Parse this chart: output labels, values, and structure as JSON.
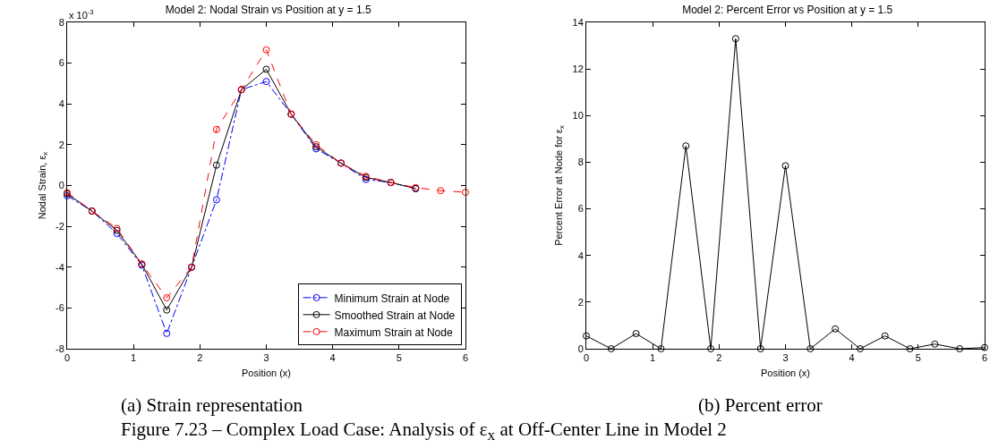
{
  "chart_data": [
    {
      "type": "line",
      "title": "Model 2: Nodal Strain vs Position at y = 1.5",
      "xlabel": "Position (x)",
      "ylabel": "Nodal Strain, ε$_{x}$",
      "annotations": [
        "x 10$^{-3}$",
        "(a) Strain representation",
        "Figure 7.23 – Complex Load Case: Analysis of ε$_{x}$ at Off-Center Line in Model 2"
      ],
      "x": [
        0,
        0.375,
        0.75,
        1.125,
        1.5,
        1.875,
        2.25,
        2.625,
        3,
        3.375,
        3.75,
        4.125,
        4.5,
        4.875,
        5.25,
        5.625,
        6
      ],
      "series": [
        {
          "name": "Minimum Strain at Node",
          "color": "#0000ff",
          "line_style": "dashdot",
          "values": [
            -0.5,
            -1.25,
            -2.35,
            -3.9,
            -7.25,
            -4.0,
            -0.7,
            4.7,
            5.1,
            3.5,
            1.8,
            1.1,
            0.3,
            0.15,
            -0.15,
            null,
            null
          ]
        },
        {
          "name": "Smoothed Strain at Node",
          "color": "#000000",
          "line_style": "solid",
          "values": [
            -0.4,
            -1.25,
            -2.2,
            -3.85,
            -6.1,
            -4.0,
            1.0,
            4.7,
            5.7,
            3.5,
            1.9,
            1.1,
            0.4,
            0.15,
            -0.15,
            null,
            null
          ]
        },
        {
          "name": "Maximum Strain at Node",
          "color": "#ff0000",
          "line_style": "dashed",
          "values": [
            -0.35,
            -1.25,
            -2.1,
            -3.85,
            -5.5,
            -4.0,
            2.75,
            4.7,
            6.65,
            3.5,
            2.0,
            1.1,
            0.45,
            0.15,
            -0.1,
            -0.25,
            -0.33
          ]
        }
      ],
      "marker": "circle",
      "legend": "bottom right",
      "grid": false,
      "xlim": [
        0,
        6
      ],
      "xticks": [
        0,
        1,
        2,
        3,
        4,
        5,
        6
      ],
      "ylim": [
        -8,
        8
      ],
      "yticks": [
        -8,
        -6,
        -4,
        -2,
        0,
        2,
        4,
        6,
        8
      ]
    },
    {
      "type": "line",
      "title": "Model 2: Percent Error vs Position at y = 1.5",
      "xlabel": "Position (x)",
      "ylabel": "Percent Error at Node for ε$_{x}$",
      "annotations": [
        "(b) Percent error"
      ],
      "x": [
        0,
        0.375,
        0.75,
        1.125,
        1.5,
        1.875,
        2.25,
        2.625,
        3,
        3.375,
        3.75,
        4.125,
        4.5,
        4.875,
        5.25,
        5.625,
        6
      ],
      "series": [
        {
          "color": "#000000",
          "values": [
            0.55,
            0,
            0.65,
            0,
            8.7,
            0,
            13.3,
            0,
            7.85,
            0,
            0.85,
            0,
            0.55,
            0,
            0.2,
            0,
            0.05
          ]
        }
      ],
      "marker": "circle",
      "line_style": "solid",
      "legend": false,
      "grid": false,
      "xlim": [
        0,
        6
      ],
      "xticks": [
        0,
        1,
        2,
        3,
        4,
        5,
        6
      ],
      "ylim": [
        0,
        14
      ],
      "yticks": [
        0,
        2,
        4,
        6,
        8,
        10,
        12,
        14
      ]
    }
  ]
}
